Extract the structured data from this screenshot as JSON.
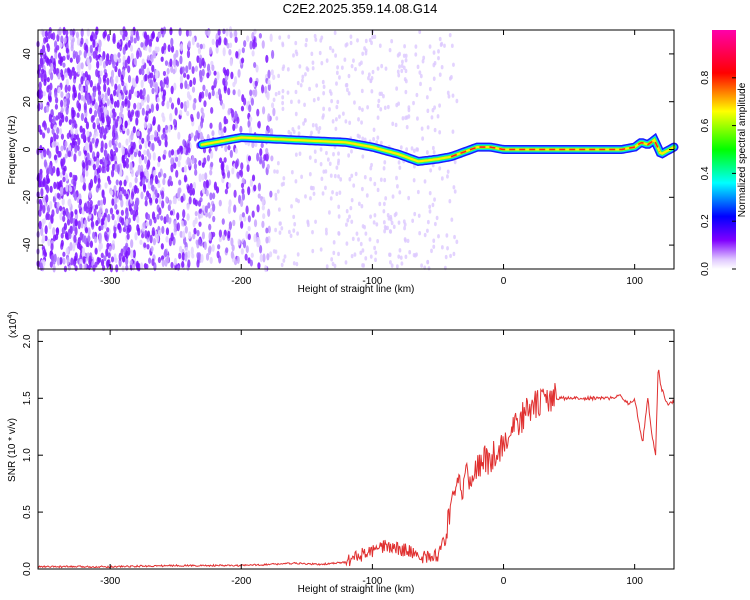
{
  "page": {
    "title": "C2E2.2025.359.14.08.G14"
  },
  "chart_data": [
    {
      "type": "heatmap",
      "title": "C2E2.2025.359.14.08.G14",
      "xlabel": "Height of straight line (km)",
      "ylabel": "Frequency (Hz)",
      "xlim": [
        -355,
        130
      ],
      "ylim": [
        -50,
        50
      ],
      "xticks": [
        -300,
        -200,
        -100,
        0,
        100
      ],
      "yticks": [
        -40,
        -20,
        0,
        20,
        40
      ],
      "colorbar": {
        "label": "Normalized spectral amplitude",
        "range": [
          0,
          1
        ],
        "ticks": [
          0.0,
          0.2,
          0.4,
          0.6,
          0.8
        ],
        "colors": [
          "#ffffff",
          "#8000ff",
          "#0000ff",
          "#00ffff",
          "#00ff00",
          "#ffff00",
          "#ff0000",
          "#ff00ff"
        ]
      },
      "ridge": {
        "x": [
          -230,
          -200,
          -160,
          -120,
          -100,
          -80,
          -65,
          -50,
          -40,
          -30,
          -20,
          -10,
          0,
          30,
          60,
          90,
          100,
          105,
          110,
          115,
          120,
          130
        ],
        "y": [
          2,
          5,
          4,
          3,
          1,
          -2,
          -5,
          -4,
          -3,
          -1,
          1,
          1,
          0,
          0,
          0,
          0,
          1,
          3,
          2,
          4,
          -2,
          1
        ]
      }
    },
    {
      "type": "line",
      "xlabel": "Height of straight line (km)",
      "ylabel": "SNR (10 * v/v)",
      "scale_label": "(x10",
      "scale_exp": "4",
      "xlim": [
        -355,
        130
      ],
      "ylim": [
        0,
        2.1
      ],
      "xticks": [
        -300,
        -200,
        -100,
        0,
        100
      ],
      "yticks": [
        0.0,
        0.5,
        1.0,
        1.5,
        2.0
      ],
      "series": [
        {
          "color": "#e03030",
          "x": [
            -355,
            -300,
            -250,
            -200,
            -160,
            -140,
            -120,
            -110,
            -100,
            -90,
            -80,
            -70,
            -60,
            -50,
            -45,
            -40,
            -35,
            -30,
            -25,
            -20,
            -15,
            -10,
            -5,
            0,
            5,
            10,
            15,
            20,
            30,
            40,
            60,
            80,
            90,
            95,
            100,
            103,
            106,
            110,
            113,
            116,
            118,
            120,
            125,
            130
          ],
          "y": [
            0.02,
            0.02,
            0.03,
            0.03,
            0.05,
            0.04,
            0.06,
            0.12,
            0.15,
            0.2,
            0.18,
            0.15,
            0.1,
            0.12,
            0.3,
            0.5,
            0.7,
            0.75,
            0.85,
            0.9,
            0.95,
            0.95,
            1.05,
            1.1,
            1.2,
            1.25,
            1.35,
            1.4,
            1.48,
            1.5,
            1.5,
            1.5,
            1.52,
            1.45,
            1.5,
            1.3,
            1.1,
            1.5,
            1.2,
            1.0,
            1.8,
            1.6,
            1.45,
            1.47
          ]
        }
      ]
    }
  ]
}
